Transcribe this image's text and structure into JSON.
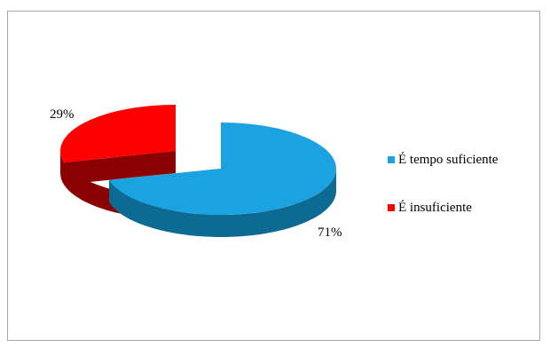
{
  "chart_data": {
    "type": "pie",
    "style": "3d-exploded",
    "slices": [
      {
        "label": "É tempo suficiente",
        "value": 71,
        "data_label": "71%",
        "color": "#1aa3e0",
        "side_color": "#0d6a93"
      },
      {
        "label": "É insuficiente",
        "value": 29,
        "data_label": "29%",
        "color": "#ff0000",
        "side_color": "#8b0000"
      }
    ],
    "legend_position": "right"
  }
}
